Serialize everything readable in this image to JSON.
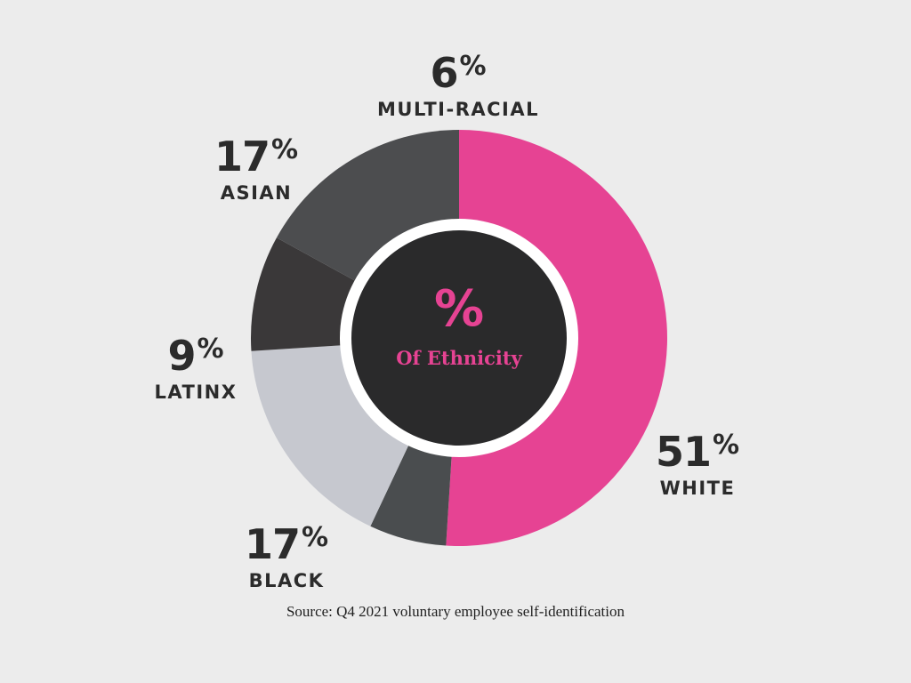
{
  "chart_data": {
    "type": "pie",
    "donut": true,
    "title": "",
    "center_symbol": "%",
    "center_label": "Of Ethnicity",
    "categories": [
      "White",
      "Multi-Racial",
      "Asian",
      "Latinx",
      "Black"
    ],
    "values": [
      51,
      6,
      17,
      9,
      17
    ],
    "slice_labels": [
      "WHITE",
      "MULTI-RACIAL",
      "ASIAN",
      "LATINX",
      "BLACK"
    ],
    "value_labels": [
      "51",
      "6",
      "17",
      "9",
      "17"
    ],
    "percent_sign": "%",
    "slice_colors": [
      "#e64393",
      "#4a4d4f",
      "#c6c8cf",
      "#3a3839",
      "#4c4d4f"
    ],
    "legend": "none",
    "source": "Source: Q4 2021 voluntary employee self-identification"
  },
  "colors": {
    "background": "#ececec",
    "center_fill": "#2a2a2b",
    "accent": "#e64393",
    "text": "#2b2b2b"
  }
}
